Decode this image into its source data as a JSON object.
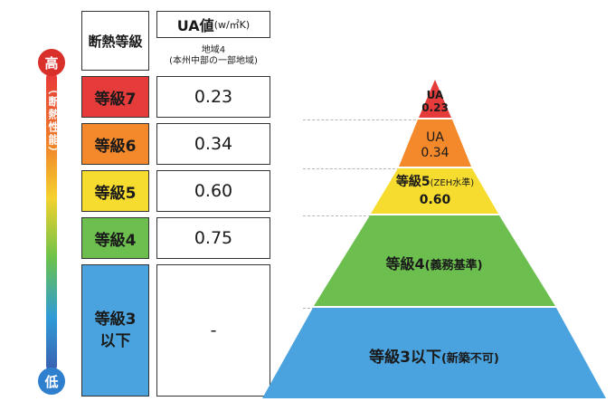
{
  "scale": {
    "high": "高",
    "low": "低",
    "label": "（断熱性能）"
  },
  "table": {
    "header_grade": "断熱等級",
    "header_ua": "UA値",
    "header_ua_unit": "(w/㎡K)",
    "region_line1": "地域4",
    "region_line2": "(本州中部の一部地域)",
    "rows": [
      {
        "grade": "等級7",
        "value": "0.23",
        "color": "#e53b3b"
      },
      {
        "grade": "等級6",
        "value": "0.34",
        "color": "#f3892b"
      },
      {
        "grade": "等級5",
        "value": "0.60",
        "color": "#f6dc2e"
      },
      {
        "grade": "等級4",
        "value": "0.75",
        "color": "#6cbf4f"
      }
    ],
    "last_row": {
      "grade_line1": "等級3",
      "grade_line2": "以下",
      "value": "-",
      "color": "#4aa3de"
    }
  },
  "pyramid": {
    "level7": {
      "line1": "UA",
      "line2": "0.23",
      "color": "#e53b3b"
    },
    "level6": {
      "line1": "UA",
      "line2": "0.34",
      "color": "#f3892b"
    },
    "level5": {
      "line1": "等級5",
      "note": "(ZEH水準)",
      "line2": "0.60",
      "color": "#f6dc2e"
    },
    "level4": {
      "label": "等級4",
      "note": "(義務基準)",
      "color": "#6cbf4f"
    },
    "level3": {
      "label": "等級3以下",
      "note": "(新築不可)",
      "color": "#4aa3de"
    }
  }
}
